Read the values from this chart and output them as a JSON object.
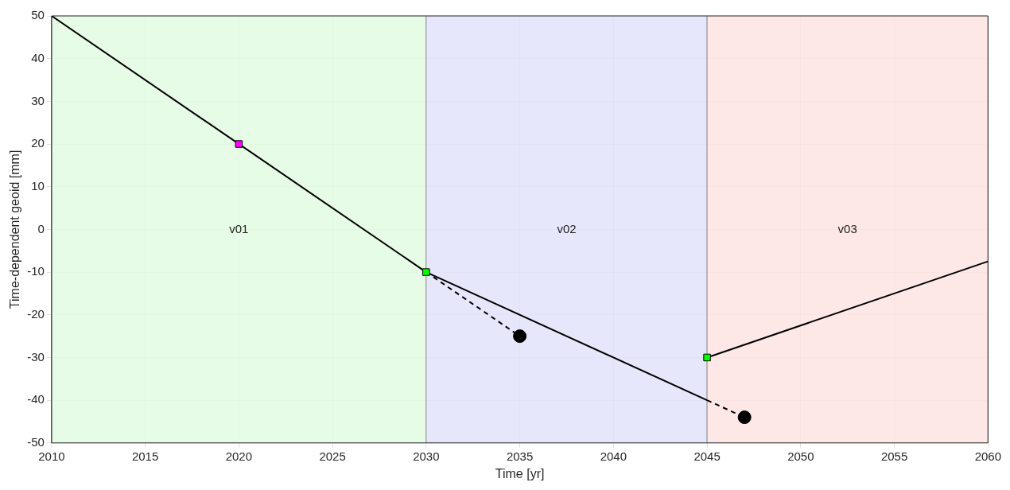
{
  "chart_data": {
    "type": "line",
    "xlabel": "Time [yr]",
    "ylabel": "Time-dependent geoid [mm]",
    "xlim": [
      2010,
      2060
    ],
    "xticks": [
      2010,
      2015,
      2020,
      2025,
      2030,
      2035,
      2040,
      2045,
      2050,
      2055,
      2060
    ],
    "ylim": [
      -50,
      50
    ],
    "yticks": [
      -50,
      -40,
      -30,
      -20,
      -10,
      0,
      10,
      20,
      30,
      40,
      50
    ],
    "grid": true,
    "legend": false,
    "bands": [
      {
        "axis": "x",
        "from": 2010,
        "to": 2030,
        "label": "v01",
        "color": "#e2fce2"
      },
      {
        "axis": "x",
        "from": 2030,
        "to": 2045,
        "label": "v02",
        "color": "#e3e3fb"
      },
      {
        "axis": "x",
        "from": 2045,
        "to": 2060,
        "label": "v03",
        "color": "#fde3e3"
      }
    ],
    "series": [
      {
        "type": "line",
        "color": "#000000",
        "x": [
          2010,
          2030
        ],
        "values": [
          50,
          -10
        ],
        "marker": "none",
        "line_style": "solid"
      },
      {
        "type": "line",
        "color": "#000000",
        "x": [
          2030,
          2045
        ],
        "values": [
          -10,
          -40
        ],
        "marker": "none",
        "line_style": "solid"
      },
      {
        "type": "line",
        "color": "#000000",
        "x": [
          2045,
          2060
        ],
        "values": [
          -30,
          -7.5
        ],
        "marker": "none",
        "line_style": "solid"
      },
      {
        "type": "line",
        "color": "#000000",
        "x": [
          2030,
          2035
        ],
        "values": [
          -10,
          -25
        ],
        "marker": "none",
        "line_style": "dashed"
      },
      {
        "type": "line",
        "color": "#000000",
        "x": [
          2045,
          2047
        ],
        "values": [
          -40,
          -44
        ],
        "marker": "none",
        "line_style": "dashed"
      },
      {
        "type": "scatter",
        "color": "#ff00ff",
        "x": [
          2020
        ],
        "values": [
          20
        ],
        "marker": "square"
      },
      {
        "type": "scatter",
        "color": "#00ff00",
        "x": [
          2030,
          2045
        ],
        "values": [
          -10,
          -30
        ],
        "marker": "square"
      },
      {
        "type": "scatter",
        "color": "#000000",
        "x": [
          2035,
          2047
        ],
        "values": [
          -25,
          -44
        ],
        "marker": "circle"
      }
    ]
  }
}
